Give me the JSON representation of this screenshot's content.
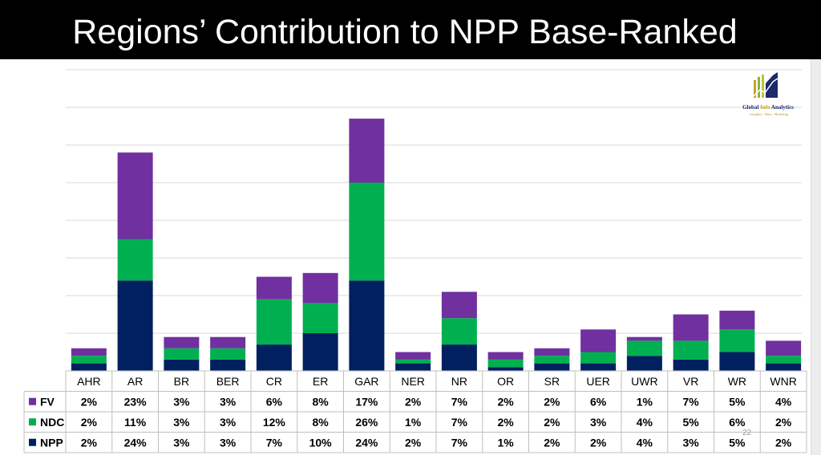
{
  "slide": {
    "title": "Regions’ Contribution to NPP Base-Ranked",
    "page_number": "22",
    "logo": {
      "name_part1": "Global ",
      "name_part2": "Info",
      "name_part3": " Analytics",
      "tagline": "...Insights · Data · Branding"
    }
  },
  "colors": {
    "FV": "#7030a0",
    "NDC": "#00b050",
    "NPP": "#002060",
    "grid": "#d9d9d9",
    "table_border": "#bfbfbf"
  },
  "chart_data": {
    "type": "bar",
    "stacked": true,
    "categories": [
      "AHR",
      "AR",
      "BR",
      "BER",
      "CR",
      "ER",
      "GAR",
      "NER",
      "NR",
      "OR",
      "SR",
      "UER",
      "UWR",
      "VR",
      "WR",
      "WNR"
    ],
    "series": [
      {
        "name": "NPP",
        "values": [
          2,
          24,
          3,
          3,
          7,
          10,
          24,
          2,
          7,
          1,
          2,
          2,
          4,
          3,
          5,
          2
        ]
      },
      {
        "name": "NDC",
        "values": [
          2,
          11,
          3,
          3,
          12,
          8,
          26,
          1,
          7,
          2,
          2,
          3,
          4,
          5,
          6,
          2
        ]
      },
      {
        "name": "FV",
        "values": [
          2,
          23,
          3,
          3,
          6,
          8,
          17,
          2,
          7,
          2,
          2,
          6,
          1,
          7,
          5,
          4
        ]
      }
    ],
    "table_rows": [
      {
        "name": "FV",
        "values": [
          "2%",
          "23%",
          "3%",
          "3%",
          "6%",
          "8%",
          "17%",
          "2%",
          "7%",
          "2%",
          "2%",
          "6%",
          "1%",
          "7%",
          "5%",
          "4%"
        ]
      },
      {
        "name": "NDC",
        "values": [
          "2%",
          "11%",
          "3%",
          "3%",
          "12%",
          "8%",
          "26%",
          "1%",
          "7%",
          "2%",
          "2%",
          "3%",
          "4%",
          "5%",
          "6%",
          "2%"
        ]
      },
      {
        "name": "NPP",
        "values": [
          "2%",
          "24%",
          "3%",
          "3%",
          "7%",
          "10%",
          "24%",
          "2%",
          "7%",
          "1%",
          "2%",
          "2%",
          "4%",
          "3%",
          "5%",
          "2%"
        ]
      }
    ],
    "ylim": [
      0,
      80
    ],
    "grid": true,
    "legend": "table"
  }
}
